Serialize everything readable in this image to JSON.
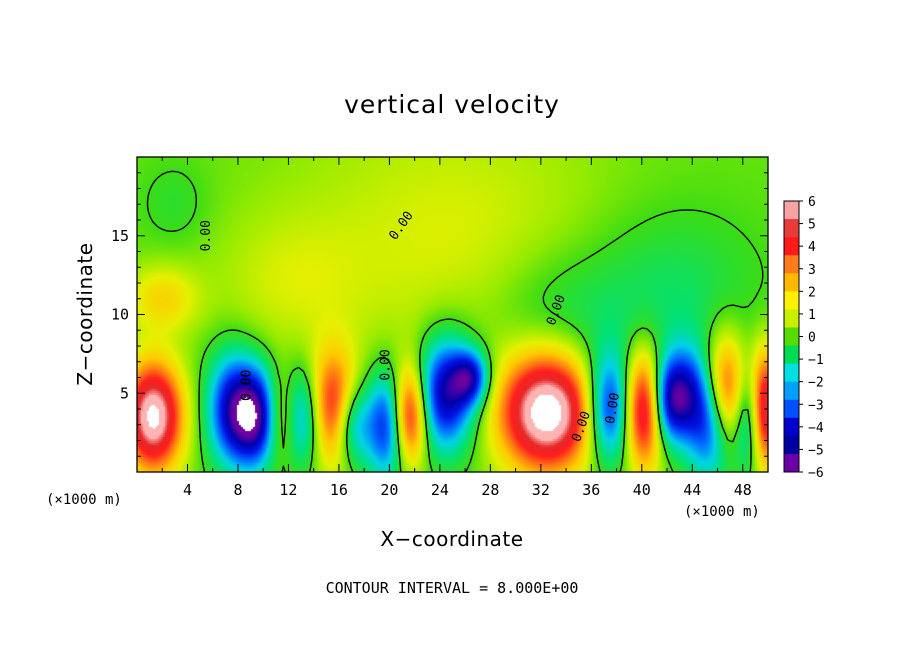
{
  "chart_data": {
    "type": "heatmap",
    "title": "vertical velocity",
    "xlabel": "X−coordinate",
    "ylabel": "Z−coordinate",
    "x_unit": "(×1000 m)",
    "z_unit": "(×1000 m)",
    "xlim": [
      0,
      50
    ],
    "ylim": [
      0,
      20
    ],
    "x_ticks": [
      "4",
      "8",
      "12",
      "16",
      "20",
      "24",
      "28",
      "32",
      "36",
      "40",
      "44",
      "48"
    ],
    "y_ticks": [
      "5",
      "10",
      "15"
    ],
    "contour_interval_text": "CONTOUR INTERVAL = 8.000E+00",
    "contour_labels": [
      "0.00",
      "0.00",
      "0.00",
      "0.00",
      "0.00",
      "0.00",
      "0.00"
    ],
    "colorbar": {
      "levels": [
        "6",
        "5",
        "4",
        "3",
        "2",
        "1",
        "0",
        "−1",
        "−2",
        "−3",
        "−4",
        "−5",
        "−6"
      ],
      "colors": [
        "#f7a3a3",
        "#e83c3c",
        "#ff1a1a",
        "#ff7a1a",
        "#ffb800",
        "#fff000",
        "#c8ee00",
        "#55dd00",
        "#00dd55",
        "#00e0e0",
        "#00a0ff",
        "#0050ff",
        "#0000cc",
        "#0000a0",
        "#6a00a8"
      ]
    },
    "field": {
      "background": 0.3,
      "blobs": [
        {
          "x": 25,
          "z": 15,
          "sx": 9,
          "sz": 6,
          "a": 1.1
        },
        {
          "x": 12,
          "z": 12,
          "sx": 4,
          "sz": 3,
          "a": 0.8
        },
        {
          "x": 3,
          "z": 17,
          "sx": 2,
          "sz": 2,
          "a": -0.6
        },
        {
          "x": 2,
          "z": 11,
          "sx": 2,
          "sz": 1.5,
          "a": 1.8
        },
        {
          "x": 42,
          "z": 11,
          "sx": 5,
          "sz": 4,
          "a": -1.2
        },
        {
          "x": 33,
          "z": 10,
          "sx": 4,
          "sz": 3,
          "a": -1.0
        },
        {
          "x": 1.3,
          "z": 3.5,
          "sx": 1.6,
          "sz": 2.4,
          "a": 7.0
        },
        {
          "x": 7.5,
          "z": 4,
          "sx": 1.4,
          "sz": 2.5,
          "a": -4.5
        },
        {
          "x": 9.5,
          "z": 3.5,
          "sx": 1.3,
          "sz": 2.2,
          "a": -5.5
        },
        {
          "x": 11.5,
          "z": 3.5,
          "sx": 1.0,
          "sz": 2.0,
          "a": 3.5
        },
        {
          "x": 13,
          "z": 3.5,
          "sx": 1.3,
          "sz": 2.2,
          "a": -4.0
        },
        {
          "x": 15.5,
          "z": 4,
          "sx": 1.4,
          "sz": 2.5,
          "a": 5.0
        },
        {
          "x": 17,
          "z": 3,
          "sx": 1.0,
          "sz": 1.8,
          "a": -3.5
        },
        {
          "x": 20,
          "z": 3,
          "sx": 1.3,
          "sz": 2.4,
          "a": -5.0
        },
        {
          "x": 21.5,
          "z": 3.5,
          "sx": 1.0,
          "sz": 2.2,
          "a": 6.5
        },
        {
          "x": 24.5,
          "z": 5,
          "sx": 1.6,
          "sz": 2.5,
          "a": -5.5
        },
        {
          "x": 26.5,
          "z": 6,
          "sx": 1.0,
          "sz": 1.2,
          "a": -4.0
        },
        {
          "x": 32.5,
          "z": 3.8,
          "sx": 2.6,
          "sz": 2.6,
          "a": 7.5
        },
        {
          "x": 37.5,
          "z": 4,
          "sx": 1.3,
          "sz": 2.4,
          "a": -5.0
        },
        {
          "x": 40.2,
          "z": 4,
          "sx": 1.2,
          "sz": 2.6,
          "a": 6.0
        },
        {
          "x": 42,
          "z": 4.5,
          "sx": 1.0,
          "sz": 2.0,
          "a": -5.0
        },
        {
          "x": 43.5,
          "z": 5,
          "sx": 1.0,
          "sz": 2.0,
          "a": -3.0
        },
        {
          "x": 45.5,
          "z": 3.5,
          "sx": 1.3,
          "sz": 2.6,
          "a": -5.5
        },
        {
          "x": 46.5,
          "z": 5,
          "sx": 1.2,
          "sz": 2.5,
          "a": 6.0
        },
        {
          "x": 49.7,
          "z": 4,
          "sx": 1.0,
          "sz": 2.6,
          "a": 6.0
        },
        {
          "x": 48.5,
          "z": 3.5,
          "sx": 0.8,
          "sz": 2.4,
          "a": -4.0
        }
      ]
    }
  }
}
